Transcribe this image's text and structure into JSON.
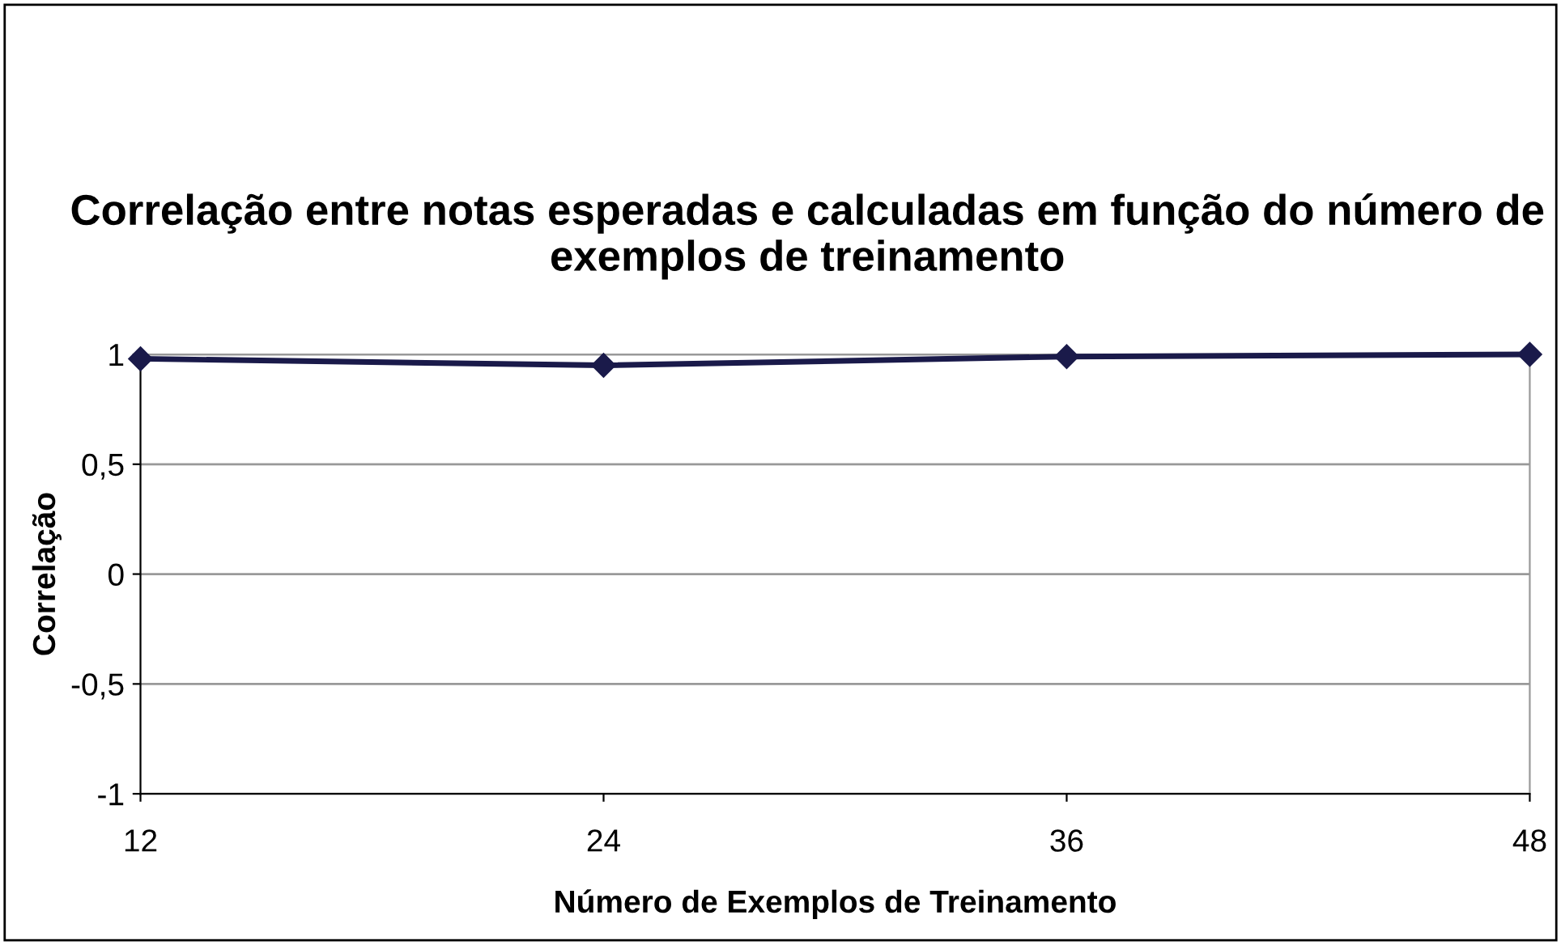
{
  "chart_data": {
    "type": "line",
    "title": "Correlação entre notas esperadas e calculadas em função do número de exemplos de treinamento",
    "xlabel": "Número de Exemplos de Treinamento",
    "ylabel": "Correlação",
    "categories": [
      "12",
      "24",
      "36",
      "48"
    ],
    "series": [
      {
        "color": "#1a1a4a",
        "values": [
          0.98,
          0.95,
          0.99,
          1.0
        ]
      }
    ],
    "ylim": [
      -1,
      1
    ],
    "yticks": [
      {
        "value": -1,
        "label": "-1"
      },
      {
        "value": -0.5,
        "label": "-0,5"
      },
      {
        "value": 0,
        "label": "0"
      },
      {
        "value": 0.5,
        "label": "0,5"
      },
      {
        "value": 1,
        "label": "1"
      }
    ],
    "grid": "y",
    "marker": "diamond",
    "line_style": "solid",
    "legend": false
  }
}
